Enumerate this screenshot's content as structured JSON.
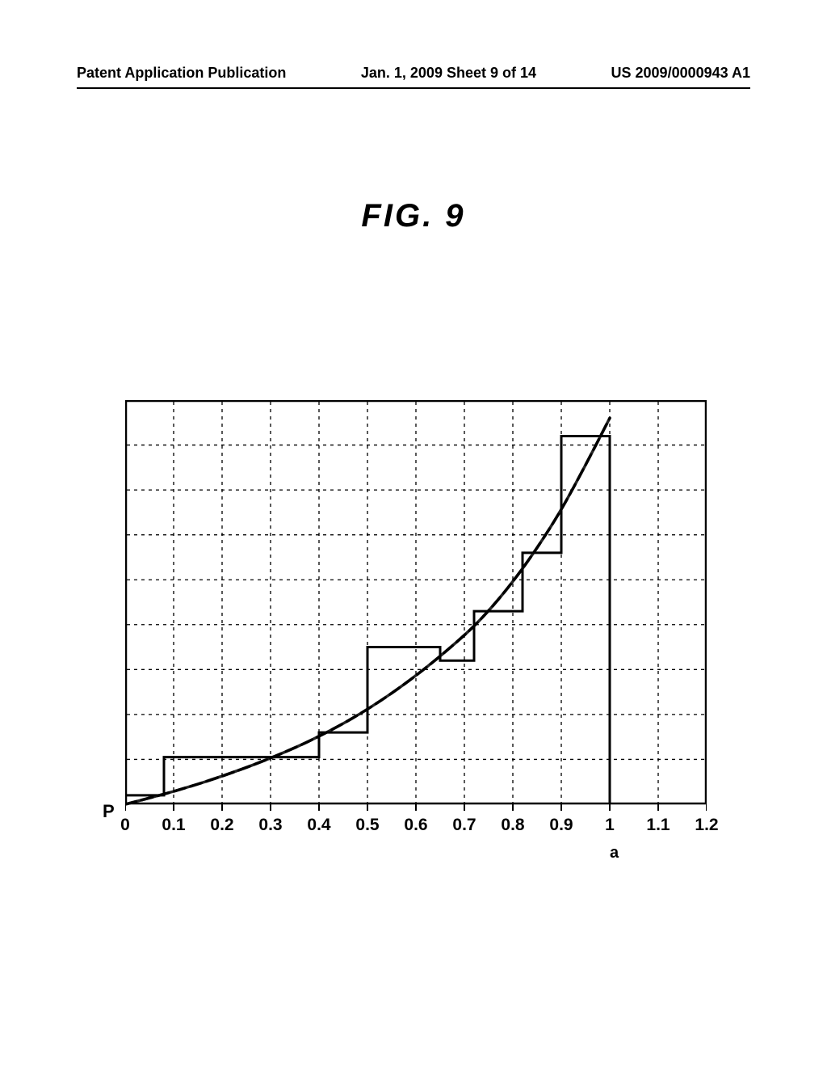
{
  "header": {
    "left": "Patent Application Publication",
    "center": "Jan. 1, 2009  Sheet 9 of 14",
    "right": "US 2009/0000943 A1"
  },
  "figure": {
    "title": "FIG. 9",
    "ylabel": "P",
    "xlabel_sub": "a",
    "xlim": [
      0,
      1.2
    ],
    "ylim": [
      0,
      9
    ],
    "xtick_step": 0.1,
    "ytick_step": 1,
    "xtick_labels": [
      "0",
      "0.1",
      "0.2",
      "0.3",
      "0.4",
      "0.5",
      "0.6",
      "0.7",
      "0.8",
      "0.9",
      "1",
      "1.1",
      "1.2"
    ],
    "border_color": "#000000",
    "grid_color": "#000000",
    "curve_color": "#000000",
    "step_color": "#000000",
    "background_color": "#ffffff",
    "curve_width": 3.5,
    "step_width": 3,
    "curve_points": [
      [
        0.0,
        0.0
      ],
      [
        0.1,
        0.28
      ],
      [
        0.2,
        0.62
      ],
      [
        0.3,
        1.02
      ],
      [
        0.4,
        1.5
      ],
      [
        0.5,
        2.1
      ],
      [
        0.6,
        2.85
      ],
      [
        0.7,
        3.75
      ],
      [
        0.75,
        4.3
      ],
      [
        0.8,
        4.95
      ],
      [
        0.85,
        5.7
      ],
      [
        0.9,
        6.55
      ],
      [
        0.95,
        7.55
      ],
      [
        1.0,
        8.6
      ]
    ],
    "step_points": [
      [
        0.0,
        0.2
      ],
      [
        0.08,
        0.2
      ],
      [
        0.08,
        1.05
      ],
      [
        0.4,
        1.05
      ],
      [
        0.4,
        1.6
      ],
      [
        0.5,
        1.6
      ],
      [
        0.5,
        3.5
      ],
      [
        0.65,
        3.5
      ],
      [
        0.65,
        3.2
      ],
      [
        0.72,
        3.2
      ],
      [
        0.72,
        4.3
      ],
      [
        0.82,
        4.3
      ],
      [
        0.82,
        5.6
      ],
      [
        0.9,
        5.6
      ],
      [
        0.9,
        8.2
      ],
      [
        1.0,
        8.2
      ],
      [
        1.0,
        0.0
      ]
    ]
  }
}
